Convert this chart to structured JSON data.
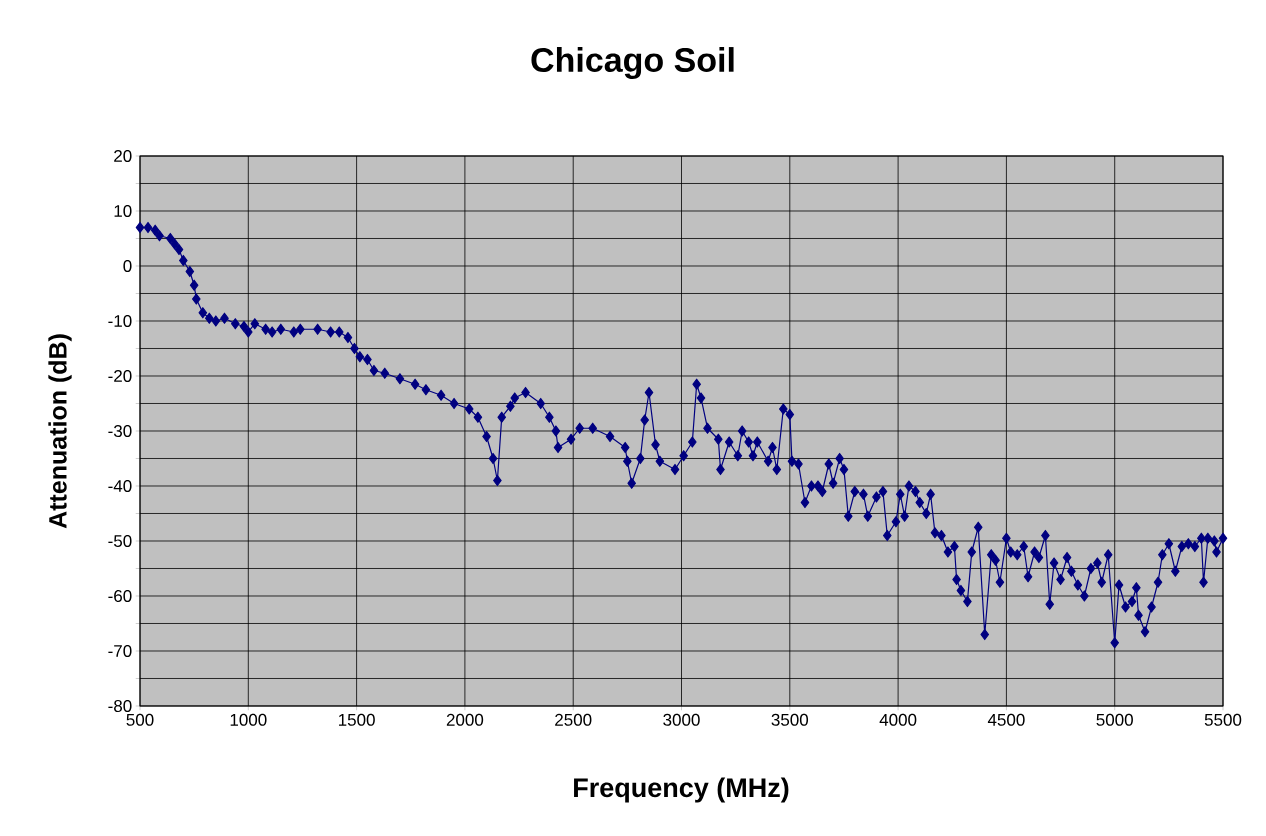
{
  "chart_data": {
    "type": "line",
    "title": "Chicago Soil",
    "xlabel": "Frequency (MHz)",
    "ylabel": "Attenuation (dB)",
    "x": [
      500,
      537,
      570,
      590,
      640,
      660,
      680,
      700,
      730,
      750,
      760,
      790,
      820,
      850,
      890,
      940,
      980,
      1000,
      1030,
      1080,
      1110,
      1150,
      1210,
      1240,
      1320,
      1380,
      1420,
      1460,
      1490,
      1515,
      1550,
      1580,
      1630,
      1700,
      1770,
      1820,
      1890,
      1950,
      2020,
      2060,
      2100,
      2130,
      2150,
      2170,
      2210,
      2230,
      2280,
      2350,
      2390,
      2420,
      2430,
      2490,
      2530,
      2590,
      2670,
      2740,
      2750,
      2770,
      2810,
      2830,
      2850,
      2880,
      2900,
      2970,
      3010,
      3050,
      3070,
      3090,
      3120,
      3170,
      3180,
      3220,
      3260,
      3280,
      3310,
      3330,
      3350,
      3400,
      3420,
      3440,
      3470,
      3500,
      3510,
      3540,
      3570,
      3600,
      3630,
      3650,
      3680,
      3700,
      3730,
      3750,
      3770,
      3800,
      3840,
      3860,
      3900,
      3930,
      3950,
      3990,
      4010,
      4030,
      4050,
      4080,
      4100,
      4130,
      4150,
      4170,
      4200,
      4230,
      4260,
      4270,
      4290,
      4320,
      4340,
      4370,
      4400,
      4430,
      4450,
      4470,
      4500,
      4520,
      4550,
      4580,
      4600,
      4630,
      4650,
      4680,
      4700,
      4720,
      4750,
      4780,
      4800,
      4830,
      4860,
      4890,
      4920,
      4940,
      4970,
      5000,
      5020,
      5050,
      5080,
      5100,
      5110,
      5140,
      5170,
      5200,
      5220,
      5250,
      5280,
      5310,
      5340,
      5370,
      5400,
      5410,
      5430,
      5460,
      5470,
      5500
    ],
    "series": [
      {
        "color": "#000080",
        "values": [
          7,
          7,
          6.5,
          5.5,
          5,
          4,
          3,
          1,
          -1,
          -3.5,
          -6,
          -8.5,
          -9.5,
          -10,
          -9.5,
          -10.5,
          -11,
          -12,
          -10.5,
          -11.5,
          -12,
          -11.5,
          -12,
          -11.5,
          -11.5,
          -12,
          -12,
          -13,
          -15,
          -16.5,
          -17,
          -19,
          -19.5,
          -20.5,
          -21.5,
          -22.5,
          -23.5,
          -25,
          -26,
          -27.5,
          -31,
          -35,
          -39,
          -27.5,
          -25.5,
          -24,
          -23,
          -25,
          -27.5,
          -30,
          -33,
          -31.5,
          -29.5,
          -29.5,
          -31,
          -33,
          -35.5,
          -39.5,
          -35,
          -28,
          -23,
          -32.5,
          -35.5,
          -37,
          -34.5,
          -32,
          -21.5,
          -24,
          -29.5,
          -31.5,
          -37,
          -32,
          -34.5,
          -30,
          -32,
          -34.5,
          -32,
          -35.5,
          -33,
          -37,
          -26,
          -27,
          -35.5,
          -36,
          -43,
          -40,
          -40,
          -41,
          -36,
          -39.5,
          -35,
          -37,
          -45.5,
          -41,
          -41.5,
          -45.5,
          -42,
          -41,
          -49,
          -46.5,
          -41.5,
          -45.5,
          -40,
          -41,
          -43,
          -45,
          -41.5,
          -48.5,
          -49,
          -52,
          -51,
          -57,
          -59,
          -61,
          -52,
          -47.5,
          -67,
          -52.5,
          -53.5,
          -57.5,
          -49.5,
          -52,
          -52.5,
          -51,
          -56.5,
          -52,
          -53,
          -49,
          -61.5,
          -54,
          -57,
          -53,
          -55.5,
          -58,
          -60,
          -55,
          -54,
          -57.5,
          -52.5,
          -68.5,
          -58,
          -62,
          -61,
          -58.5,
          -63.5,
          -66.5,
          -62,
          -57.5,
          -52.5,
          -50.5,
          -55.5,
          -51,
          -50.5,
          -51,
          -49.5,
          -57.5,
          -49.5,
          -50,
          -52,
          -49.5
        ]
      }
    ],
    "xlim": [
      500,
      5500
    ],
    "xticks": [
      500,
      1000,
      1500,
      2000,
      2500,
      3000,
      3500,
      4000,
      4500,
      5000,
      5500
    ],
    "ylim": [
      -80,
      20
    ],
    "yticks": [
      -80,
      {
        "value": -75,
        "label": null
      },
      -70,
      {
        "value": -65,
        "label": null
      },
      -60,
      {
        "value": -55,
        "label": null
      },
      -50,
      {
        "value": -45,
        "label": null
      },
      -40,
      {
        "value": -35,
        "label": null
      },
      -30,
      {
        "value": -25,
        "label": null
      },
      -20,
      {
        "value": -15,
        "label": null
      },
      -10,
      {
        "value": -5,
        "label": null
      },
      0,
      {
        "value": 5,
        "label": null
      },
      10,
      {
        "value": 15,
        "label": null
      },
      20
    ],
    "grid": true,
    "marker": "diamond",
    "line_style": "solid"
  }
}
